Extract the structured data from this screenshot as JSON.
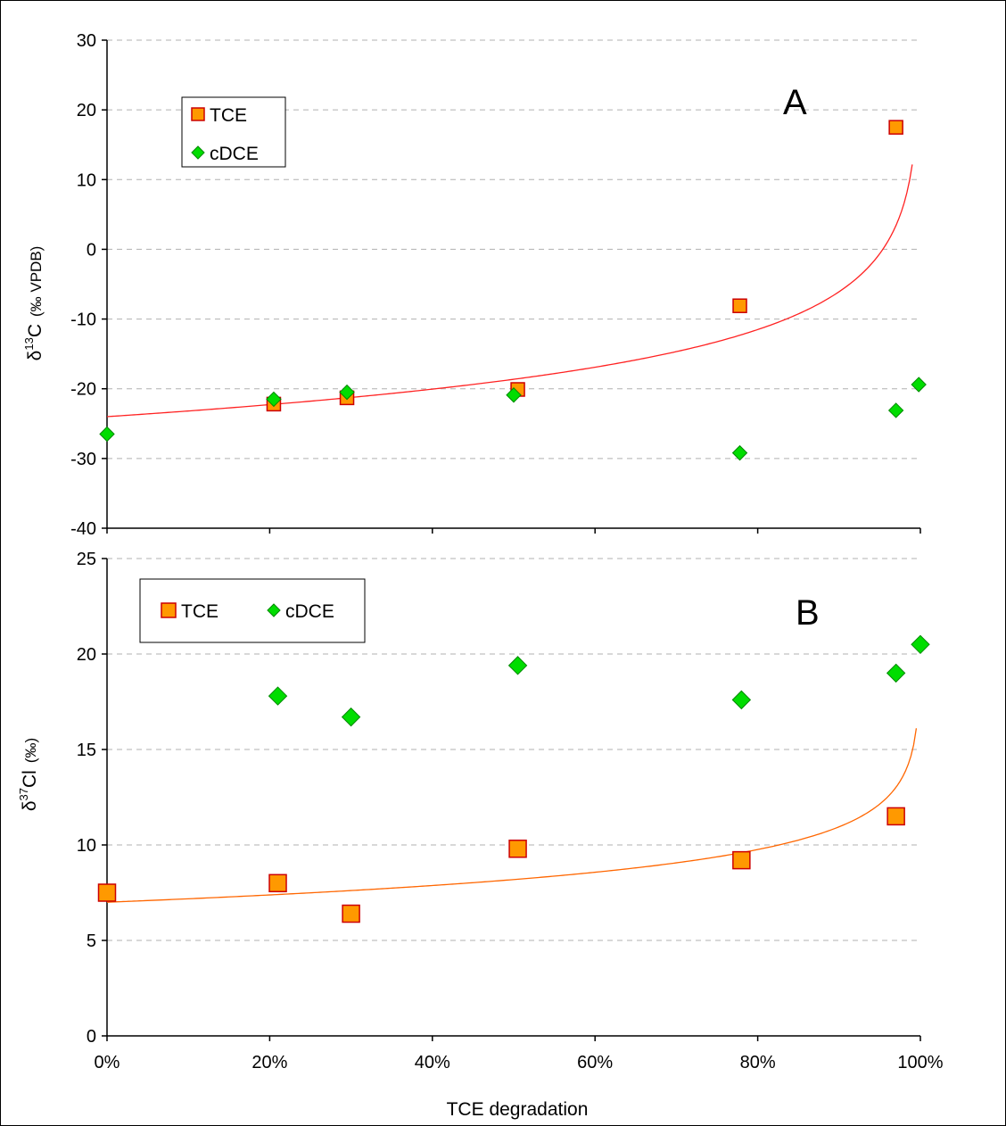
{
  "chart_data": [
    {
      "type": "scatter",
      "panel_label": "A",
      "ylabel_symbol": "δ",
      "ylabel_sup": "13",
      "ylabel_element": "C",
      "ylabel_unit": "(‰ VPDB)",
      "ylim": [
        -40,
        30
      ],
      "yticks": [
        "30",
        "20",
        "10",
        "0",
        "-10",
        "-20",
        "-30",
        "-40"
      ],
      "ytick_values": [
        30,
        20,
        10,
        0,
        -10,
        -20,
        -30,
        -40
      ],
      "xlim": [
        0,
        1
      ],
      "grid": "horizontal dashed",
      "legend_placement": "top-left",
      "legend_layout": "vertical",
      "series": [
        {
          "name": "TCE",
          "marker": "square",
          "color": "#ff9900",
          "edge_color": "#cc0000",
          "x": [
            0.205,
            0.295,
            0.505,
            0.778,
            0.97
          ],
          "y": [
            -22.2,
            -21.3,
            -20.1,
            -8.1,
            17.5
          ]
        },
        {
          "name": "cDCE",
          "marker": "diamond",
          "color": "#00dd00",
          "edge_color": "#008800",
          "x": [
            0.0,
            0.205,
            0.295,
            0.5,
            0.778,
            0.97,
            0.998
          ],
          "y": [
            -26.5,
            -21.5,
            -20.5,
            -20.9,
            -29.2,
            -23.1,
            -19.4
          ]
        }
      ],
      "fit": {
        "name": "TCE fit",
        "color": "#ff2222",
        "y0": -24.0,
        "alpha": 0.9921,
        "f_max": 0.99
      }
    },
    {
      "type": "scatter",
      "panel_label": "B",
      "ylabel_symbol": "δ",
      "ylabel_sup": "37",
      "ylabel_element": "Cl",
      "ylabel_unit": "(‰)",
      "ylim": [
        0,
        25
      ],
      "yticks": [
        "25",
        "20",
        "15",
        "10",
        "5",
        "0"
      ],
      "ytick_values": [
        25,
        20,
        15,
        10,
        5,
        0
      ],
      "xlim": [
        0,
        1
      ],
      "xticks": [
        "0%",
        "20%",
        "40%",
        "60%",
        "80%",
        "100%"
      ],
      "xtick_values": [
        0,
        0.2,
        0.4,
        0.6,
        0.8,
        1.0
      ],
      "xlabel": "TCE degradation",
      "grid": "horizontal dashed",
      "legend_placement": "top-left",
      "legend_layout": "horizontal",
      "series": [
        {
          "name": "TCE",
          "marker": "square",
          "color": "#ff9900",
          "edge_color": "#cc0000",
          "x": [
            0.0,
            0.21,
            0.3,
            0.505,
            0.78,
            0.97
          ],
          "y": [
            7.5,
            8.0,
            6.4,
            9.8,
            9.2,
            11.5
          ]
        },
        {
          "name": "cDCE",
          "marker": "diamond",
          "color": "#00dd00",
          "edge_color": "#008800",
          "x": [
            0.21,
            0.3,
            0.505,
            0.78,
            0.97,
            1.0
          ],
          "y": [
            17.8,
            16.7,
            19.4,
            17.6,
            19.0,
            20.5
          ]
        }
      ],
      "fit": {
        "name": "TCE fit",
        "color": "#ff6600",
        "y0": 7.0,
        "alpha": 0.9983,
        "f_max": 0.995
      }
    }
  ]
}
